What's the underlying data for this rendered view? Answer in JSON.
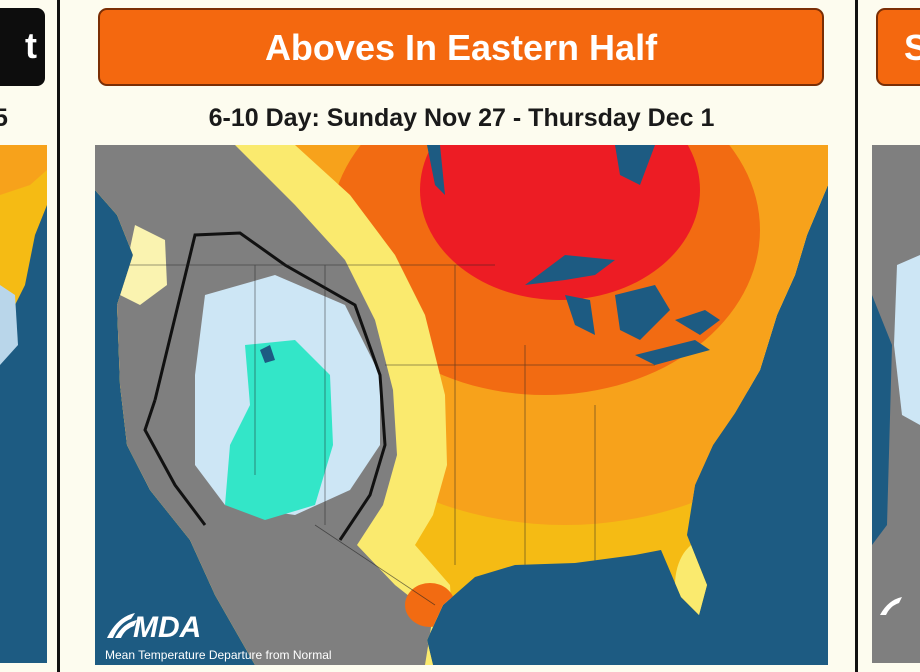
{
  "panels": {
    "left": {
      "header": "t",
      "subtitle": "5"
    },
    "main": {
      "header": "Aboves In Eastern Half",
      "subtitle": "6-10 Day: Sunday Nov 27 - Thursday Dec 1",
      "map": {
        "logo": "MDA",
        "caption": "Mean Temperature Departure from Normal"
      }
    },
    "right": {
      "header": "S"
    }
  }
}
